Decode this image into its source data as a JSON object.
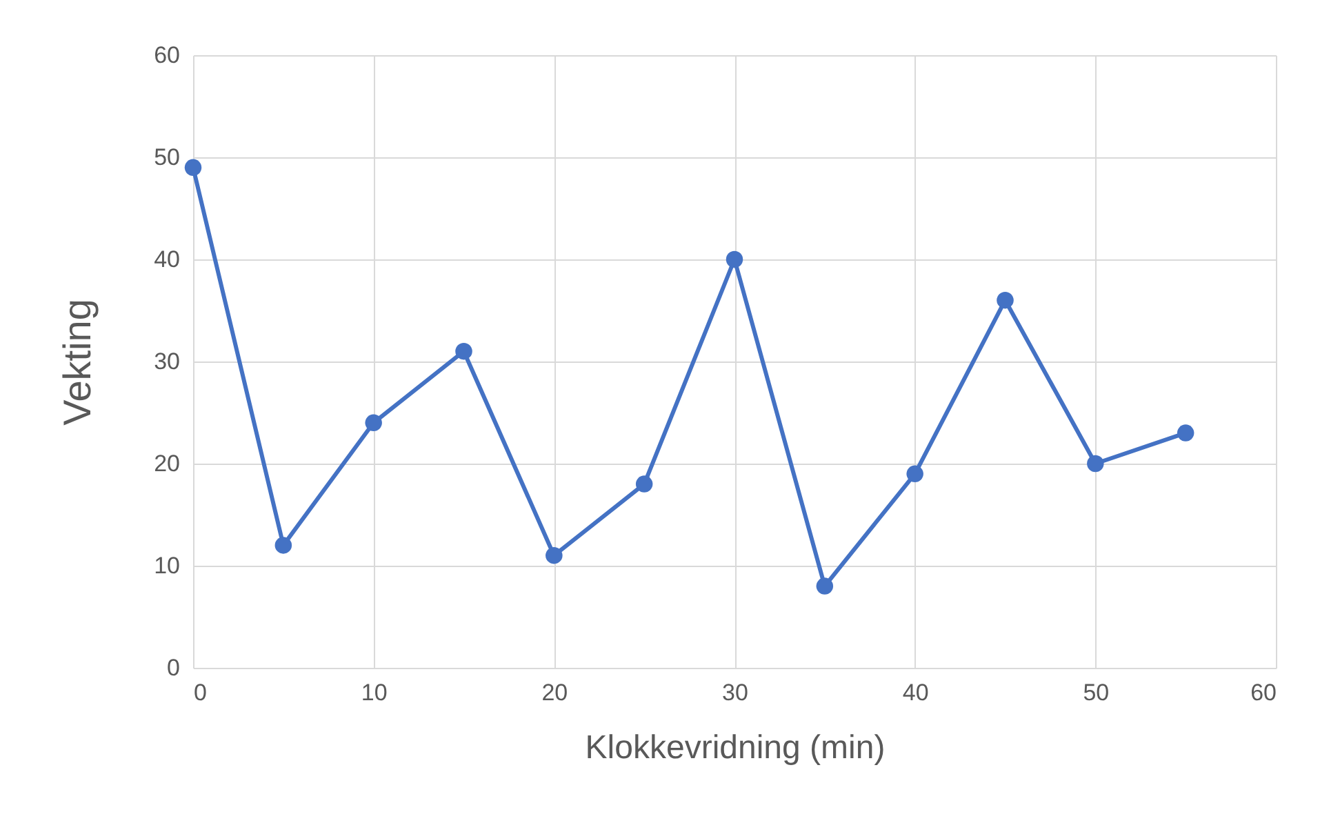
{
  "chart_data": {
    "type": "line",
    "xlabel": "Klokkevridning (min)",
    "ylabel": "Vekting",
    "x": [
      0,
      5,
      10,
      15,
      20,
      25,
      30,
      35,
      40,
      45,
      50,
      55
    ],
    "series": [
      {
        "color": "#4472c4",
        "values": [
          49,
          12,
          24,
          31,
          11,
          18,
          40,
          8,
          19,
          36,
          20,
          23
        ]
      }
    ],
    "xlim": [
      0,
      60
    ],
    "xticks": [
      0,
      10,
      20,
      30,
      40,
      50,
      60
    ],
    "ylim": [
      0,
      60
    ],
    "yticks": [
      0,
      10,
      20,
      30,
      40,
      50,
      60
    ],
    "grid": true,
    "marker": "circle",
    "line_style": "solid"
  }
}
